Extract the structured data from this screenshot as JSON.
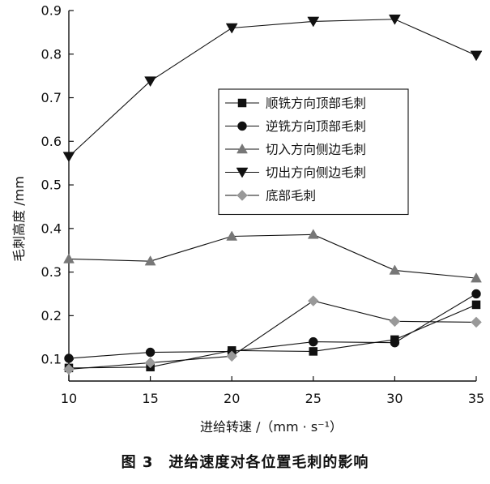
{
  "caption": "图 3　进给速度对各位置毛刺的影响",
  "chart_data": {
    "type": "line",
    "xlabel": "进给转速 /（mm · s⁻¹）",
    "ylabel": "毛刺高度 /mm",
    "xlim": [
      10,
      35
    ],
    "ylim": [
      0.05,
      0.9
    ],
    "x_ticks": [
      10,
      15,
      20,
      25,
      30,
      35
    ],
    "y_ticks": [
      0.1,
      0.2,
      0.3,
      0.4,
      0.5,
      0.6,
      0.7,
      0.8,
      0.9
    ],
    "grid": false,
    "legend_position": "right",
    "x": [
      10,
      15,
      20,
      25,
      30,
      35
    ],
    "series": [
      {
        "name": "顺铣方向顶部毛刺",
        "marker": "square",
        "color": "#111111",
        "values": [
          0.08,
          0.082,
          0.12,
          0.118,
          0.145,
          0.225
        ]
      },
      {
        "name": "逆铣方向顶部毛刺",
        "marker": "circle",
        "color": "#111111",
        "values": [
          0.102,
          0.116,
          0.118,
          0.14,
          0.138,
          0.25
        ]
      },
      {
        "name": "切入方向侧边毛刺",
        "marker": "triangle-up",
        "color": "#777777",
        "values": [
          0.33,
          0.325,
          0.382,
          0.386,
          0.304,
          0.286
        ]
      },
      {
        "name": "切出方向侧边毛刺",
        "marker": "triangle-down",
        "color": "#111111",
        "values": [
          0.565,
          0.738,
          0.86,
          0.875,
          0.88,
          0.797
        ]
      },
      {
        "name": "底部毛刺",
        "marker": "diamond",
        "color": "#999999",
        "values": [
          0.077,
          0.092,
          0.107,
          0.234,
          0.187,
          0.185
        ]
      }
    ]
  }
}
